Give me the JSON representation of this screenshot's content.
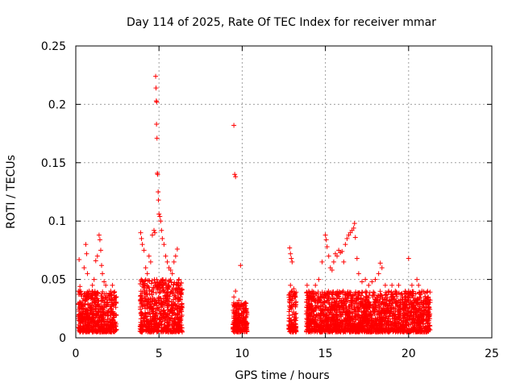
{
  "chart_data": {
    "type": "scatter",
    "title": "Day 114 of 2025, Rate Of TEC Index for receiver mmar",
    "xlabel": "GPS time / hours",
    "ylabel": "ROTI / TECUs",
    "xlim": [
      0,
      25
    ],
    "ylim": [
      0,
      0.25
    ],
    "x_ticks": [
      "0",
      "5",
      "10",
      "15",
      "20",
      "25"
    ],
    "y_ticks": [
      "0",
      "0.05",
      "0.1",
      "0.15",
      "0.2",
      "0.25"
    ],
    "x_tick_values": [
      0,
      5,
      10,
      15,
      20,
      25
    ],
    "y_tick_values": [
      0,
      0.05,
      0.1,
      0.15,
      0.2,
      0.25
    ],
    "grid": true,
    "marker": "+",
    "marker_color": "#ff0000",
    "series": [
      {
        "name": "ROTI",
        "points": [
          [
            0.2,
            0.067
          ],
          [
            0.25,
            0.044
          ],
          [
            0.3,
            0.03
          ],
          [
            0.4,
            0.02
          ],
          [
            0.5,
            0.06
          ],
          [
            0.6,
            0.08
          ],
          [
            0.65,
            0.072
          ],
          [
            0.7,
            0.055
          ],
          [
            0.8,
            0.04
          ],
          [
            0.9,
            0.035
          ],
          [
            1.0,
            0.045
          ],
          [
            1.1,
            0.05
          ],
          [
            1.2,
            0.066
          ],
          [
            1.3,
            0.07
          ],
          [
            1.4,
            0.088
          ],
          [
            1.45,
            0.084
          ],
          [
            1.5,
            0.075
          ],
          [
            1.55,
            0.062
          ],
          [
            1.6,
            0.055
          ],
          [
            1.7,
            0.048
          ],
          [
            1.8,
            0.045
          ],
          [
            1.9,
            0.03
          ],
          [
            2.0,
            0.036
          ],
          [
            2.1,
            0.04
          ],
          [
            2.2,
            0.045
          ],
          [
            2.3,
            0.033
          ],
          [
            2.4,
            0.03
          ],
          [
            3.9,
            0.09
          ],
          [
            3.95,
            0.085
          ],
          [
            4.0,
            0.08
          ],
          [
            4.1,
            0.075
          ],
          [
            4.2,
            0.06
          ],
          [
            4.3,
            0.055
          ],
          [
            4.4,
            0.07
          ],
          [
            4.5,
            0.065
          ],
          [
            4.6,
            0.088
          ],
          [
            4.7,
            0.092
          ],
          [
            4.75,
            0.09
          ],
          [
            4.8,
            0.224
          ],
          [
            4.82,
            0.214
          ],
          [
            4.84,
            0.203
          ],
          [
            4.86,
            0.202
          ],
          [
            4.85,
            0.183
          ],
          [
            4.88,
            0.171
          ],
          [
            4.9,
            0.141
          ],
          [
            4.92,
            0.14
          ],
          [
            4.95,
            0.125
          ],
          [
            4.97,
            0.118
          ],
          [
            5.0,
            0.106
          ],
          [
            5.05,
            0.104
          ],
          [
            5.1,
            0.1
          ],
          [
            5.15,
            0.092
          ],
          [
            5.2,
            0.085
          ],
          [
            5.3,
            0.08
          ],
          [
            5.4,
            0.07
          ],
          [
            5.5,
            0.065
          ],
          [
            5.6,
            0.06
          ],
          [
            5.7,
            0.058
          ],
          [
            5.8,
            0.055
          ],
          [
            5.9,
            0.065
          ],
          [
            6.0,
            0.07
          ],
          [
            6.1,
            0.076
          ],
          [
            6.2,
            0.045
          ],
          [
            6.3,
            0.035
          ],
          [
            9.5,
            0.182
          ],
          [
            9.55,
            0.14
          ],
          [
            9.6,
            0.138
          ],
          [
            9.5,
            0.035
          ],
          [
            9.6,
            0.04
          ],
          [
            9.7,
            0.03
          ],
          [
            9.8,
            0.032
          ],
          [
            9.9,
            0.062
          ],
          [
            10.0,
            0.028
          ],
          [
            10.1,
            0.025
          ],
          [
            10.2,
            0.03
          ],
          [
            12.85,
            0.077
          ],
          [
            12.9,
            0.072
          ],
          [
            12.95,
            0.068
          ],
          [
            13.0,
            0.065
          ],
          [
            12.9,
            0.045
          ],
          [
            13.0,
            0.04
          ],
          [
            13.1,
            0.042
          ],
          [
            13.2,
            0.035
          ],
          [
            13.9,
            0.045
          ],
          [
            14.0,
            0.04
          ],
          [
            14.2,
            0.04
          ],
          [
            14.4,
            0.045
          ],
          [
            14.6,
            0.05
          ],
          [
            14.8,
            0.065
          ],
          [
            15.0,
            0.088
          ],
          [
            15.05,
            0.084
          ],
          [
            15.1,
            0.078
          ],
          [
            15.2,
            0.07
          ],
          [
            15.3,
            0.06
          ],
          [
            15.4,
            0.058
          ],
          [
            15.5,
            0.065
          ],
          [
            15.6,
            0.072
          ],
          [
            15.7,
            0.07
          ],
          [
            15.8,
            0.075
          ],
          [
            15.9,
            0.073
          ],
          [
            16.0,
            0.074
          ],
          [
            16.1,
            0.065
          ],
          [
            16.2,
            0.08
          ],
          [
            16.3,
            0.085
          ],
          [
            16.4,
            0.088
          ],
          [
            16.5,
            0.09
          ],
          [
            16.6,
            0.092
          ],
          [
            16.7,
            0.094
          ],
          [
            16.75,
            0.098
          ],
          [
            16.8,
            0.086
          ],
          [
            16.9,
            0.068
          ],
          [
            17.0,
            0.055
          ],
          [
            17.2,
            0.048
          ],
          [
            17.4,
            0.05
          ],
          [
            17.6,
            0.045
          ],
          [
            17.8,
            0.048
          ],
          [
            18.0,
            0.05
          ],
          [
            18.2,
            0.055
          ],
          [
            18.3,
            0.064
          ],
          [
            18.4,
            0.06
          ],
          [
            18.6,
            0.045
          ],
          [
            18.8,
            0.04
          ],
          [
            19.0,
            0.045
          ],
          [
            19.2,
            0.04
          ],
          [
            19.4,
            0.045
          ],
          [
            19.6,
            0.038
          ],
          [
            19.8,
            0.04
          ],
          [
            20.0,
            0.068
          ],
          [
            20.2,
            0.045
          ],
          [
            20.5,
            0.05
          ],
          [
            20.6,
            0.045
          ],
          [
            20.8,
            0.04
          ],
          [
            21.0,
            0.035
          ],
          [
            21.2,
            0.03
          ]
        ],
        "dense_regions": [
          {
            "x_range": [
              0.15,
              2.45
            ],
            "y_range": [
              0.005,
              0.04
            ]
          },
          {
            "x_range": [
              3.85,
              6.4
            ],
            "y_range": [
              0.005,
              0.05
            ]
          },
          {
            "x_range": [
              9.45,
              10.3
            ],
            "y_range": [
              0.005,
              0.03
            ]
          },
          {
            "x_range": [
              12.8,
              13.25
            ],
            "y_range": [
              0.005,
              0.04
            ]
          },
          {
            "x_range": [
              13.85,
              21.3
            ],
            "y_range": [
              0.005,
              0.04
            ]
          }
        ]
      }
    ]
  }
}
